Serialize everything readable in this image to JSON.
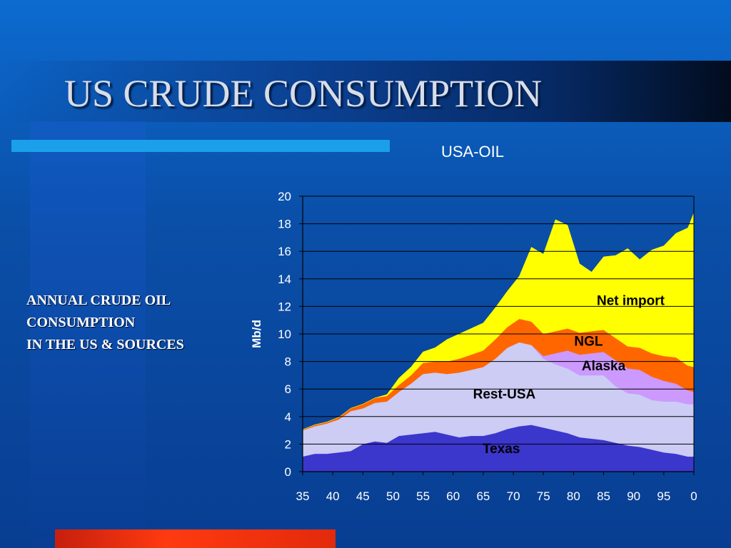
{
  "slide": {
    "title": "US CRUDE CONSUMPTION",
    "side_text": [
      "ANNUAL CRUDE OIL",
      "CONSUMPTION",
      "IN THE US & SOURCES"
    ]
  },
  "chart_data": {
    "type": "area",
    "stacked": true,
    "title": "USA-OIL",
    "xlabel": "",
    "ylabel": "Mb/d",
    "xlim": [
      1935,
      2000
    ],
    "ylim": [
      0,
      20
    ],
    "yticks": [
      0,
      2,
      4,
      6,
      8,
      10,
      12,
      14,
      16,
      18,
      20
    ],
    "xticks": [
      {
        "value": 1935,
        "label": "35"
      },
      {
        "value": 1940,
        "label": "40"
      },
      {
        "value": 1945,
        "label": "45"
      },
      {
        "value": 1950,
        "label": "50"
      },
      {
        "value": 1955,
        "label": "55"
      },
      {
        "value": 1960,
        "label": "60"
      },
      {
        "value": 1965,
        "label": "65"
      },
      {
        "value": 1970,
        "label": "70"
      },
      {
        "value": 1975,
        "label": "75"
      },
      {
        "value": 1980,
        "label": "80"
      },
      {
        "value": 1985,
        "label": "85"
      },
      {
        "value": 1990,
        "label": "90"
      },
      {
        "value": 1995,
        "label": "95"
      },
      {
        "value": 2000,
        "label": "0"
      }
    ],
    "grid": "horizontal",
    "legend": "inline labels",
    "x": [
      1935,
      1937,
      1939,
      1941,
      1943,
      1945,
      1947,
      1949,
      1951,
      1953,
      1955,
      1957,
      1959,
      1961,
      1963,
      1965,
      1967,
      1969,
      1971,
      1973,
      1975,
      1977,
      1979,
      1981,
      1983,
      1985,
      1987,
      1989,
      1991,
      1993,
      1995,
      1997,
      1999,
      2000
    ],
    "series": [
      {
        "name": "Texas",
        "color": "#3b36cc",
        "values": [
          1.1,
          1.3,
          1.3,
          1.4,
          1.5,
          2.0,
          2.2,
          2.1,
          2.6,
          2.7,
          2.8,
          2.9,
          2.7,
          2.5,
          2.6,
          2.6,
          2.8,
          3.1,
          3.3,
          3.4,
          3.2,
          3.0,
          2.8,
          2.5,
          2.4,
          2.3,
          2.1,
          1.9,
          1.8,
          1.6,
          1.4,
          1.3,
          1.1,
          1.1
        ]
      },
      {
        "name": "Rest-USA",
        "color": "#ccccf4",
        "values": [
          1.9,
          2.0,
          2.2,
          2.4,
          2.9,
          2.6,
          2.8,
          3.0,
          3.2,
          3.7,
          4.3,
          4.3,
          4.4,
          4.7,
          4.8,
          5.0,
          5.4,
          5.9,
          6.1,
          5.8,
          5.0,
          4.8,
          4.7,
          4.5,
          4.6,
          4.7,
          4.1,
          3.8,
          3.8,
          3.6,
          3.7,
          3.8,
          3.8,
          3.8
        ]
      },
      {
        "name": "Alaska",
        "color": "#cc99ff",
        "values": [
          0,
          0,
          0,
          0,
          0,
          0,
          0,
          0,
          0,
          0,
          0,
          0,
          0,
          0,
          0,
          0,
          0,
          0,
          0,
          0,
          0.2,
          0.8,
          1.3,
          1.5,
          1.6,
          1.7,
          1.9,
          1.8,
          1.8,
          1.7,
          1.5,
          1.3,
          1.0,
          0.9
        ]
      },
      {
        "name": "NGL",
        "color": "#ff6600",
        "values": [
          0.05,
          0.1,
          0.1,
          0.15,
          0.2,
          0.3,
          0.35,
          0.4,
          0.5,
          0.6,
          0.8,
          0.8,
          0.9,
          1.0,
          1.1,
          1.2,
          1.4,
          1.5,
          1.7,
          1.7,
          1.6,
          1.6,
          1.6,
          1.6,
          1.6,
          1.6,
          1.6,
          1.6,
          1.6,
          1.7,
          1.8,
          1.9,
          1.8,
          1.8
        ]
      },
      {
        "name": "Net import",
        "color": "#ffff00",
        "values": [
          0,
          0,
          0,
          0,
          0,
          0,
          0,
          0.1,
          0.5,
          0.6,
          0.8,
          1.0,
          1.6,
          1.8,
          1.9,
          2.0,
          2.3,
          2.6,
          3.1,
          5.4,
          5.8,
          8.1,
          7.5,
          5.0,
          4.3,
          5.3,
          6.0,
          7.1,
          6.4,
          7.5,
          8.0,
          9.0,
          10.0,
          11.2
        ]
      }
    ]
  }
}
